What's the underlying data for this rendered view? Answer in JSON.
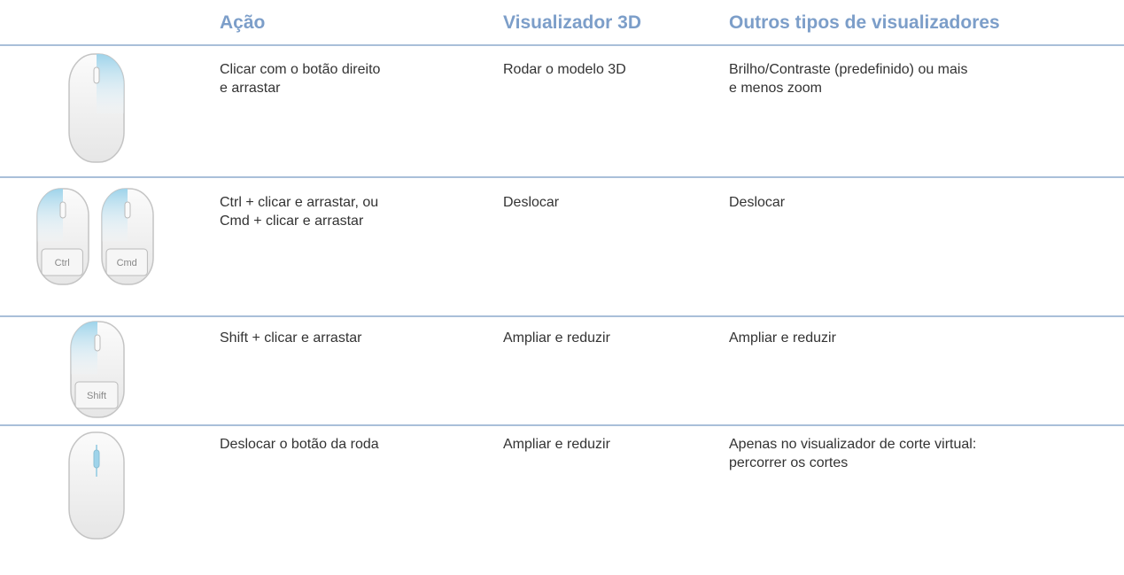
{
  "header": {
    "columns": [
      "Ação",
      "Visualizador 3D",
      "Outros tipos de visualizadores"
    ]
  },
  "rows": [
    {
      "keys": [],
      "cells": [
        [
          "Clicar com o botão direito",
          "e arrastar"
        ],
        [
          "Rodar o modelo 3D"
        ],
        [
          "Brilho/Contraste (predefinido) ou mais",
          "e menos zoom"
        ]
      ]
    },
    {
      "keys": [
        "Ctrl",
        "Cmd"
      ],
      "cells": [
        [
          "Ctrl + clicar e arrastar, ou",
          "Cmd + clicar e arrastar"
        ],
        [
          "Deslocar"
        ],
        [
          "Deslocar"
        ]
      ]
    },
    {
      "keys": [
        "Shift"
      ],
      "cells": [
        [
          "Shift + clicar e arrastar"
        ],
        [
          "Ampliar e reduzir"
        ],
        [
          "Ampliar e reduzir"
        ]
      ]
    },
    {
      "keys": [],
      "cells": [
        [
          "Deslocar o botão da roda"
        ],
        [
          "Ampliar e reduzir"
        ],
        [
          "Apenas no visualizador de corte virtual:",
          "percorrer os cortes"
        ]
      ]
    }
  ]
}
